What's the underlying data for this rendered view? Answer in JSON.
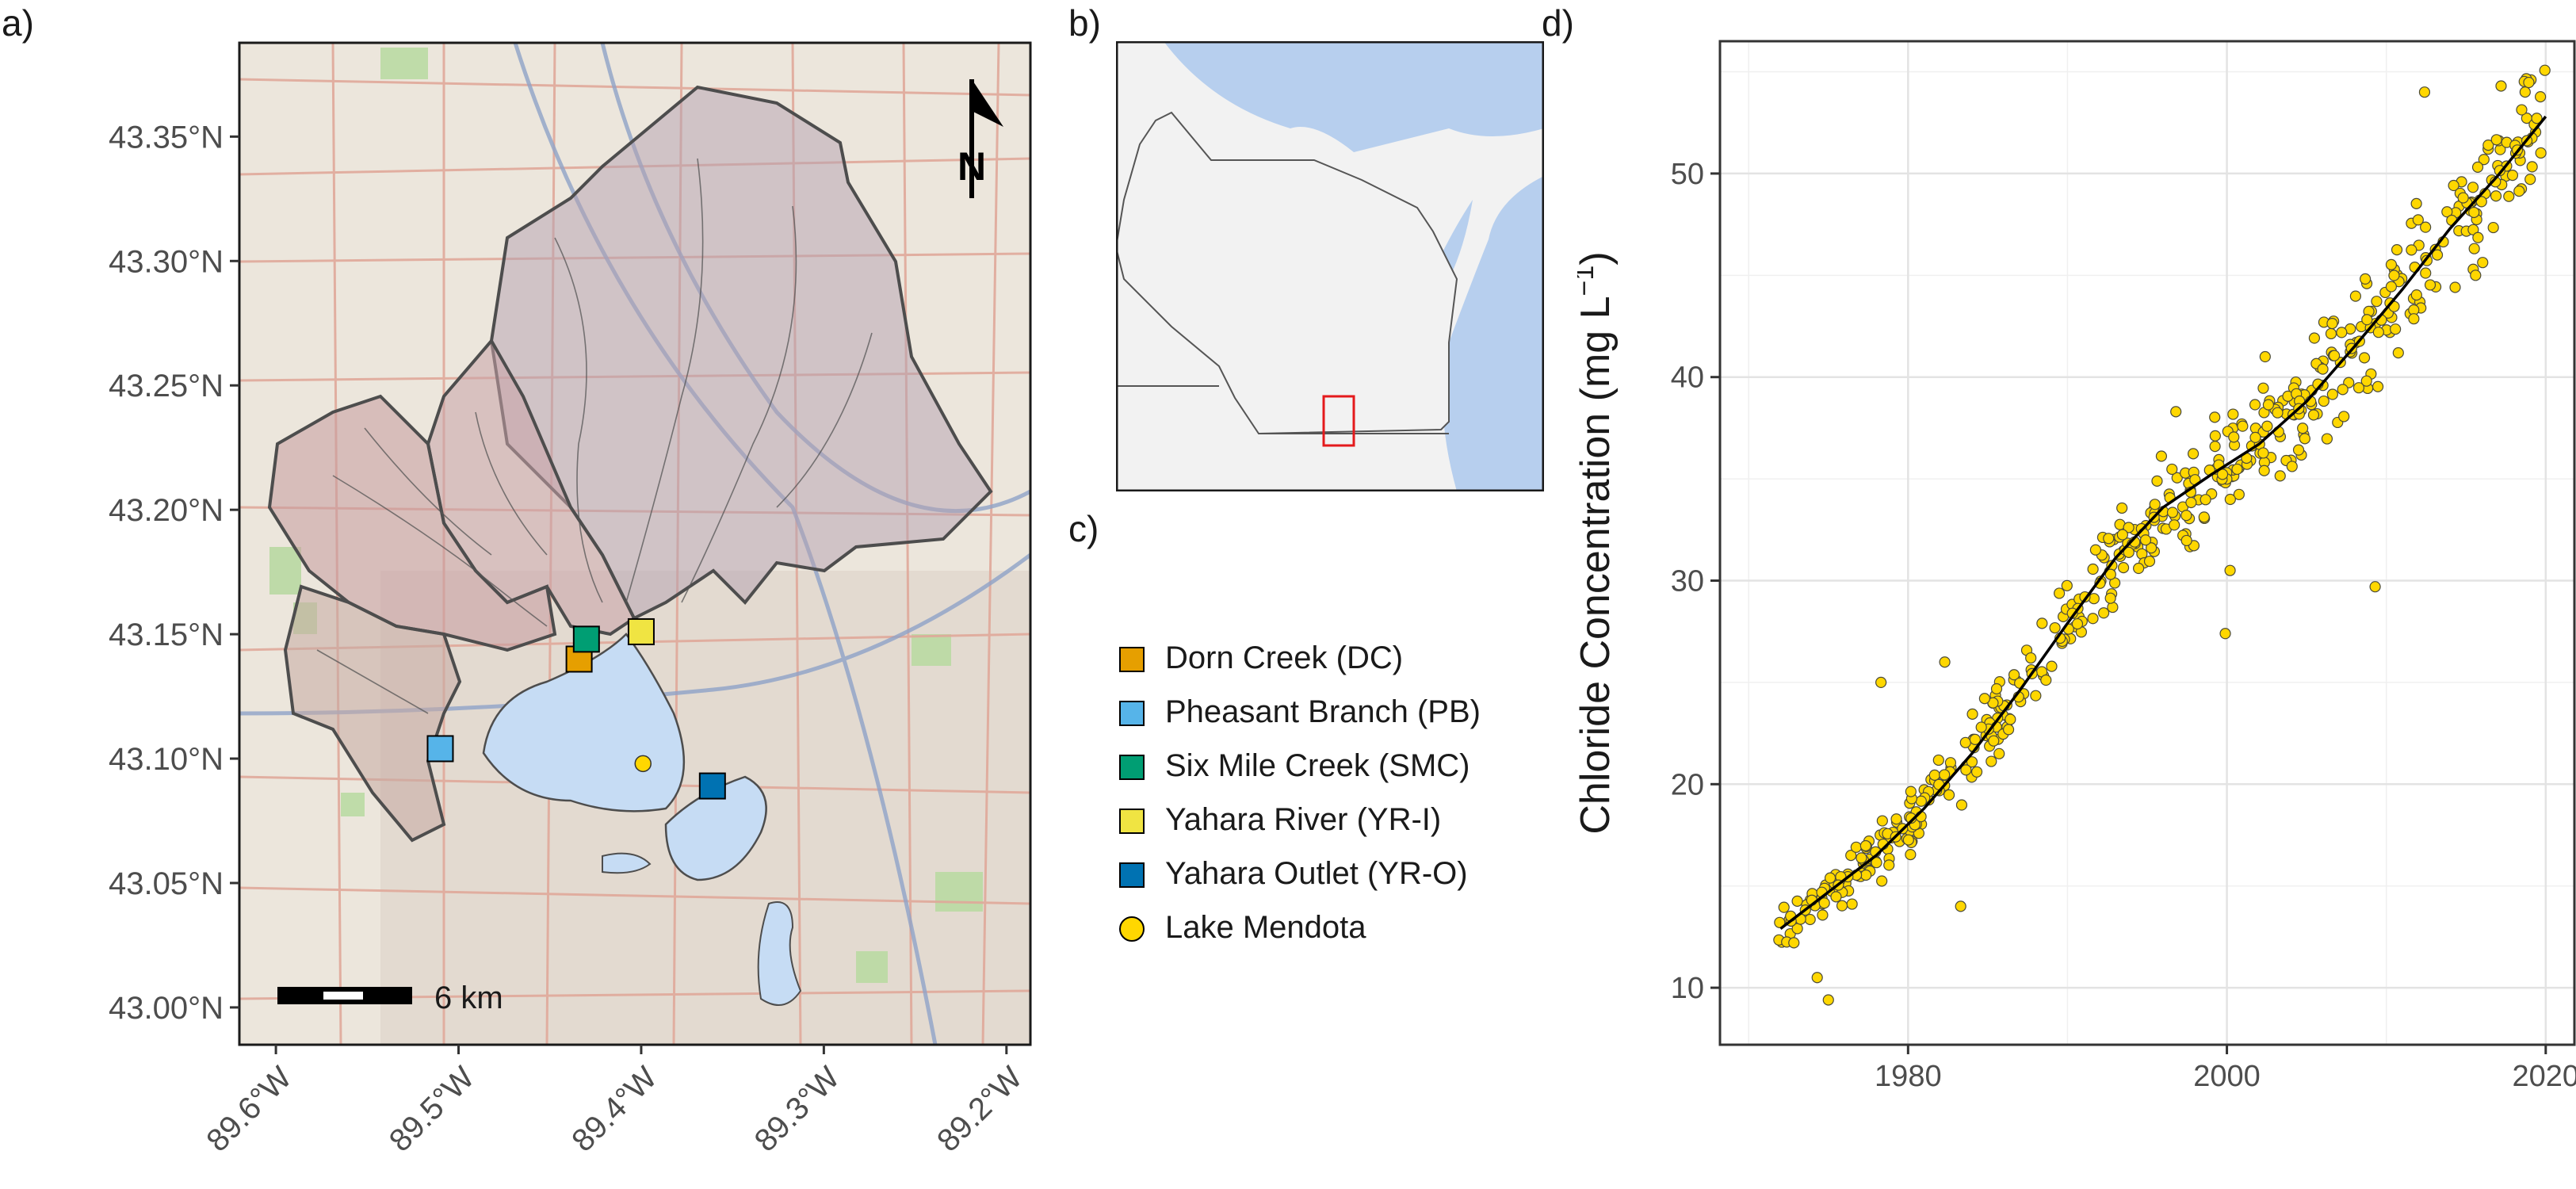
{
  "panels": {
    "a": "a)",
    "b": "b)",
    "c": "c)",
    "d": "d)"
  },
  "map_a": {
    "lat_ticks": [
      {
        "label": "43.35°N",
        "value": 43.35
      },
      {
        "label": "43.30°N",
        "value": 43.3
      },
      {
        "label": "43.25°N",
        "value": 43.25
      },
      {
        "label": "43.20°N",
        "value": 43.2
      },
      {
        "label": "43.15°N",
        "value": 43.15
      },
      {
        "label": "43.10°N",
        "value": 43.1
      },
      {
        "label": "43.05°N",
        "value": 43.05
      },
      {
        "label": "43.00°N",
        "value": 43.0
      }
    ],
    "lon_ticks": [
      {
        "label": "89.6°W",
        "value": -89.6
      },
      {
        "label": "89.5°W",
        "value": -89.5
      },
      {
        "label": "89.4°W",
        "value": -89.4
      },
      {
        "label": "89.3°W",
        "value": -89.3
      },
      {
        "label": "89.2°W",
        "value": -89.2
      }
    ],
    "north_arrow_label": "N",
    "scale_bar_label": "6 km",
    "sites": [
      {
        "id": "DC",
        "lon": -89.434,
        "lat": 43.14,
        "color": "#E69F00"
      },
      {
        "id": "SMC",
        "lon": -89.43,
        "lat": 43.148,
        "color": "#009E73"
      },
      {
        "id": "YR-I",
        "lon": -89.4,
        "lat": 43.151,
        "color": "#F0E442"
      },
      {
        "id": "PB",
        "lon": -89.51,
        "lat": 43.104,
        "color": "#56B4E9"
      },
      {
        "id": "YR-O",
        "lon": -89.361,
        "lat": 43.089,
        "color": "#0072B2"
      },
      {
        "id": "Lake",
        "lon": -89.399,
        "lat": 43.098,
        "color": "#FFD700"
      }
    ]
  },
  "legend": {
    "items": [
      {
        "label": "Dorn Creek (DC)",
        "color": "#E69F00",
        "shape": "square"
      },
      {
        "label": "Pheasant Branch (PB)",
        "color": "#56B4E9",
        "shape": "square"
      },
      {
        "label": "Six Mile Creek (SMC)",
        "color": "#009E73",
        "shape": "square"
      },
      {
        "label": "Yahara River (YR-I)",
        "color": "#F0E442",
        "shape": "square"
      },
      {
        "label": "Yahara Outlet (YR-O)",
        "color": "#0072B2",
        "shape": "square"
      },
      {
        "label": "Lake Mendota",
        "color": "#FFD700",
        "shape": "circle"
      }
    ]
  },
  "chart_data": {
    "type": "scatter",
    "title": "",
    "xlabel": "",
    "ylabel": "Chloride Concentration (mg L",
    "ylabel_sup": "−1",
    "ylabel_close": ")",
    "xlim": [
      1968.2,
      2021.8
    ],
    "ylim": [
      7.2,
      56.5
    ],
    "xticks": [
      1980,
      2000,
      2020
    ],
    "yticks": [
      10,
      20,
      30,
      40,
      50
    ],
    "grid": true,
    "point_color": "#FFD700",
    "trend": {
      "x": [
        1972,
        1975,
        1978,
        1981,
        1984,
        1987,
        1990,
        1993,
        1996,
        1999,
        2002,
        2005,
        2008,
        2011,
        2014,
        2017,
        2020
      ],
      "y": [
        12.9,
        14.7,
        16.5,
        18.8,
        21.5,
        24.6,
        27.9,
        31.1,
        33.6,
        35.2,
        36.7,
        38.8,
        41.5,
        44.3,
        47.3,
        49.9,
        52.8
      ]
    },
    "outliers": [
      {
        "x": 1975.0,
        "y": 9.4
      },
      {
        "x": 1974.3,
        "y": 10.5
      },
      {
        "x": 1983.3,
        "y": 14.0
      },
      {
        "x": 1978.3,
        "y": 25.0
      },
      {
        "x": 1982.3,
        "y": 26.0
      },
      {
        "x": 1999.9,
        "y": 27.4
      },
      {
        "x": 2000.2,
        "y": 30.5
      },
      {
        "x": 1996.8,
        "y": 38.3
      },
      {
        "x": 2002.4,
        "y": 41.0
      },
      {
        "x": 2009.3,
        "y": 29.7
      },
      {
        "x": 2012.4,
        "y": 54.0
      },
      {
        "x": 2017.2,
        "y": 54.3
      },
      {
        "x": 2015.6,
        "y": 45.0
      },
      {
        "x": 2013.2,
        "y": 46.0
      }
    ]
  }
}
